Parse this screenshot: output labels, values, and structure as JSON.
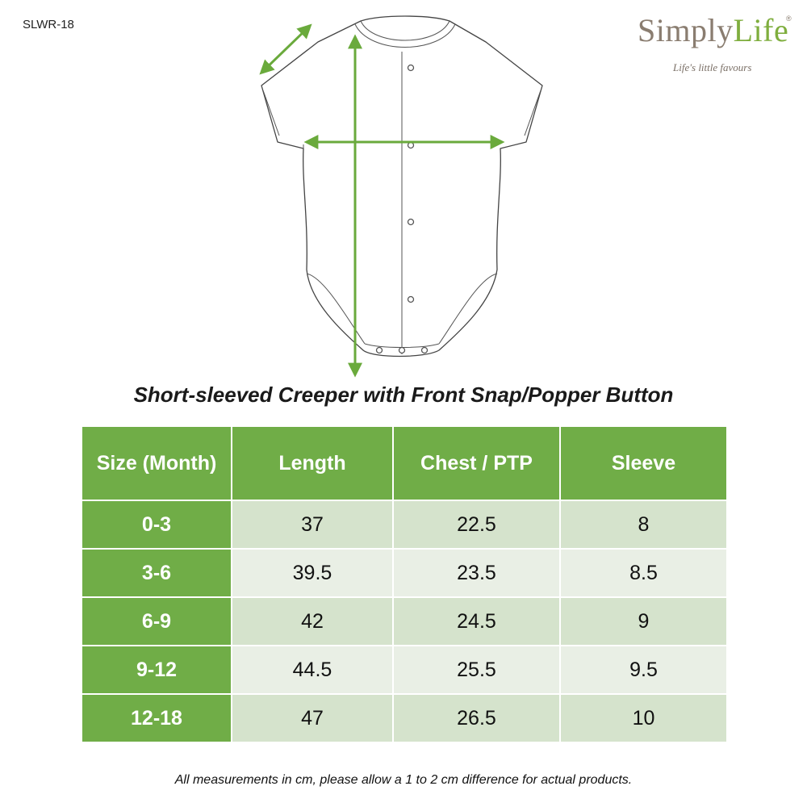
{
  "product_code": "SLWR-18",
  "logo": {
    "name_part1": "Simply",
    "name_part2": "Life",
    "registered": "®",
    "tagline": "Life's little favours",
    "accent_color": "#7fae3e"
  },
  "illustration": {
    "name": "creeper-diagram",
    "arrow_color": "#6aaa3c"
  },
  "title": "Short-sleeved Creeper with Front Snap/Popper Button",
  "table": {
    "header_color": "#70ad47",
    "headers": [
      "Size (Month)",
      "Length",
      "Chest / PTP",
      "Sleeve"
    ],
    "rows": [
      [
        "0-3",
        "37",
        "22.5",
        "8"
      ],
      [
        "3-6",
        "39.5",
        "23.5",
        "8.5"
      ],
      [
        "6-9",
        "42",
        "24.5",
        "9"
      ],
      [
        "9-12",
        "44.5",
        "25.5",
        "9.5"
      ],
      [
        "12-18",
        "47",
        "26.5",
        "10"
      ]
    ]
  },
  "note": "All measurements in cm, please allow a 1 to 2 cm difference for actual products."
}
